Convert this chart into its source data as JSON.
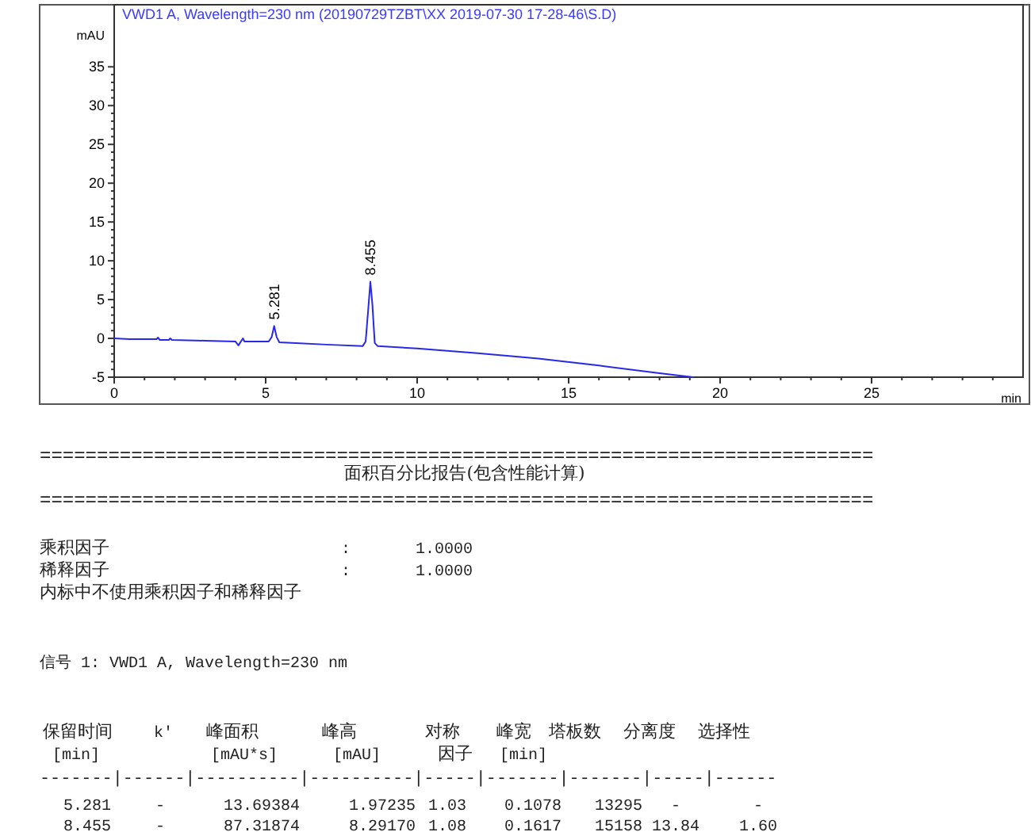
{
  "chart_data": [
    {
      "type": "line",
      "title": "VWD1 A, Wavelength=230 nm (20190729TZBT\\XX 2019-07-30 17-28-46\\S.D)",
      "xlabel": "min",
      "ylabel": "mAU",
      "xlim": [
        0,
        30
      ],
      "ylim": [
        -5,
        43
      ],
      "xticks": [
        0,
        5,
        10,
        15,
        20,
        25
      ],
      "yticks": [
        -5,
        0,
        5,
        10,
        15,
        20,
        25,
        30,
        35
      ],
      "grid": false,
      "marker": "none",
      "line_style": "solid",
      "series": [
        {
          "color": "#2828e6",
          "x": [
            0,
            0.5,
            1.4,
            1.45,
            1.5,
            1.8,
            1.85,
            1.9,
            3,
            4.0,
            4.1,
            4.15,
            4.2,
            4.25,
            4.3,
            5.1,
            5.2,
            5.28,
            5.36,
            5.45,
            6,
            7,
            8.2,
            8.3,
            8.4,
            8.455,
            8.52,
            8.6,
            8.7,
            10,
            12,
            14,
            16,
            18,
            19.1
          ],
          "values": [
            0,
            -0.1,
            -0.1,
            0.1,
            -0.2,
            -0.2,
            0,
            -0.2,
            -0.3,
            -0.4,
            -0.9,
            -0.6,
            -0.3,
            0,
            -0.4,
            -0.4,
            0.2,
            1.6,
            0.2,
            -0.5,
            -0.6,
            -0.8,
            -1.0,
            -0.4,
            4.5,
            7.3,
            4.5,
            -0.6,
            -1.0,
            -1.3,
            -1.9,
            -2.6,
            -3.5,
            -4.5,
            -5
          ]
        }
      ],
      "annotations": [
        {
          "text": "5.281",
          "x": 5.281,
          "y": 1.6
        },
        {
          "text": "8.455",
          "x": 8.455,
          "y": 7.3
        }
      ]
    },
    {
      "type": "other",
      "annotations": [
        "=========================================================================",
        "面积百分比报告(包含性能计算)",
        "=========================================================================",
        "乘积因子",
        ":",
        "1.0000",
        "稀释因子",
        ":",
        "1.0000",
        "内标中不使用乘积因子和稀释因子",
        "信号 1: VWD1 A, Wavelength=230 nm",
        "保留时间",
        "k'",
        "峰面积",
        "峰高",
        "对称",
        "峰宽",
        "塔板数",
        "分离度",
        "选择性",
        "[min]",
        "[mAU*s]",
        "[mAU]",
        "因子",
        "[min]",
        "-------|------|----------|----------|-----|-------|-------|-----|------",
        "5.281",
        "-",
        "13.69384",
        "1.97235",
        "1.03",
        "0.1078",
        "13295",
        "-",
        "-",
        "8.455",
        "-",
        "87.31874",
        "8.29170",
        "1.08",
        "0.1617",
        "15158",
        "13.84",
        "1.60"
      ]
    }
  ]
}
